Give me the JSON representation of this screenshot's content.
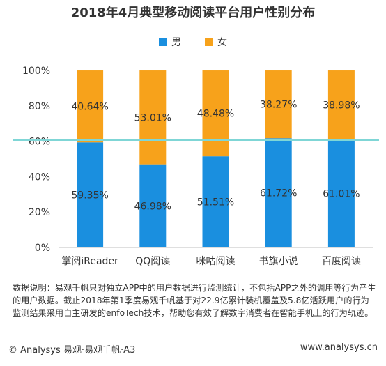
{
  "chart_data": {
    "type": "bar",
    "stacked": true,
    "title": "2018年4月典型移动阅读平台用户性别分布",
    "categories": [
      "掌阅iReader",
      "QQ阅读",
      "咪咕阅读",
      "书旗小说",
      "百度阅读"
    ],
    "series": [
      {
        "name": "男",
        "color": "#1a8fdf",
        "values": [
          59.35,
          46.98,
          51.51,
          61.72,
          61.01
        ],
        "labels": [
          "59.35%",
          "46.98%",
          "51.51%",
          "61.72%",
          "61.01%"
        ]
      },
      {
        "name": "女",
        "color": "#f7a21b",
        "values": [
          40.64,
          53.01,
          48.48,
          38.27,
          38.98
        ],
        "labels": [
          "40.64%",
          "53.01%",
          "48.48%",
          "38.27%",
          "38.98%"
        ]
      }
    ],
    "yticks": [
      "0%",
      "20%",
      "40%",
      "60%",
      "80%",
      "100%"
    ],
    "ylim": [
      0,
      100
    ],
    "reference_line": {
      "value": 50,
      "color": "#7fd6d6"
    },
    "legend_position": "top-center",
    "grid": false
  },
  "note": "数据说明：易观千帆只对独立APP中的用户数据进行监测统计，不包括APP之外的调用等行为产生的用户数据。截止2018年第1季度易观千帆基于对22.9亿累计装机覆盖及5.8亿活跃用户的行为监测结果采用自主研发的enfoTech技术，帮助您有效了解数字消费者在智能手机上的行为轨迹。",
  "footer": {
    "left": "© Analysys 易观·易观千帆·A3",
    "right": "www.analysys.cn"
  }
}
